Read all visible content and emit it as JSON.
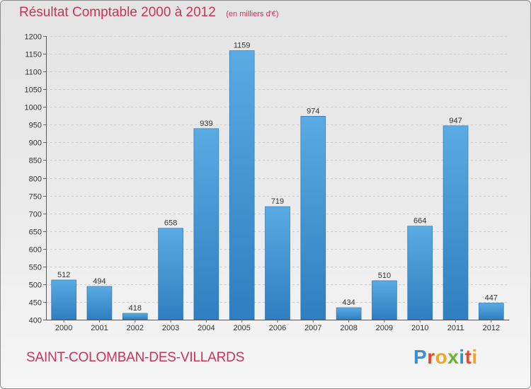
{
  "header": {
    "title": "Résultat Comptable 2000 à 2012",
    "subtitle": "(en milliers d'€)"
  },
  "footer": {
    "commune": "SAINT-COLOMBAN-DES-VILLARDS",
    "logo_letters": [
      "P",
      "r",
      "o",
      "x",
      "i",
      "t",
      "i"
    ],
    "logo_colors": [
      "#3a8fd0",
      "#e8482c",
      "#f2a51c",
      "#6ab42c",
      "#3a8fd0",
      "#e8482c",
      "#f2a51c"
    ]
  },
  "chart_data": {
    "type": "bar",
    "categories": [
      "2000",
      "2001",
      "2002",
      "2003",
      "2004",
      "2005",
      "2006",
      "2007",
      "2008",
      "2009",
      "2010",
      "2011",
      "2012"
    ],
    "values": [
      512,
      494,
      418,
      658,
      939,
      1159,
      719,
      974,
      434,
      510,
      664,
      947,
      447
    ],
    "title": "Résultat Comptable 2000 à 2012",
    "subtitle": "(en milliers d'€)",
    "xlabel": "",
    "ylabel": "",
    "ylim": [
      400,
      1200
    ],
    "yticks": [
      400,
      450,
      500,
      550,
      600,
      650,
      700,
      750,
      800,
      850,
      900,
      950,
      1000,
      1050,
      1100,
      1150,
      1200
    ],
    "grid": true,
    "bar_color": "#4a9fde"
  }
}
